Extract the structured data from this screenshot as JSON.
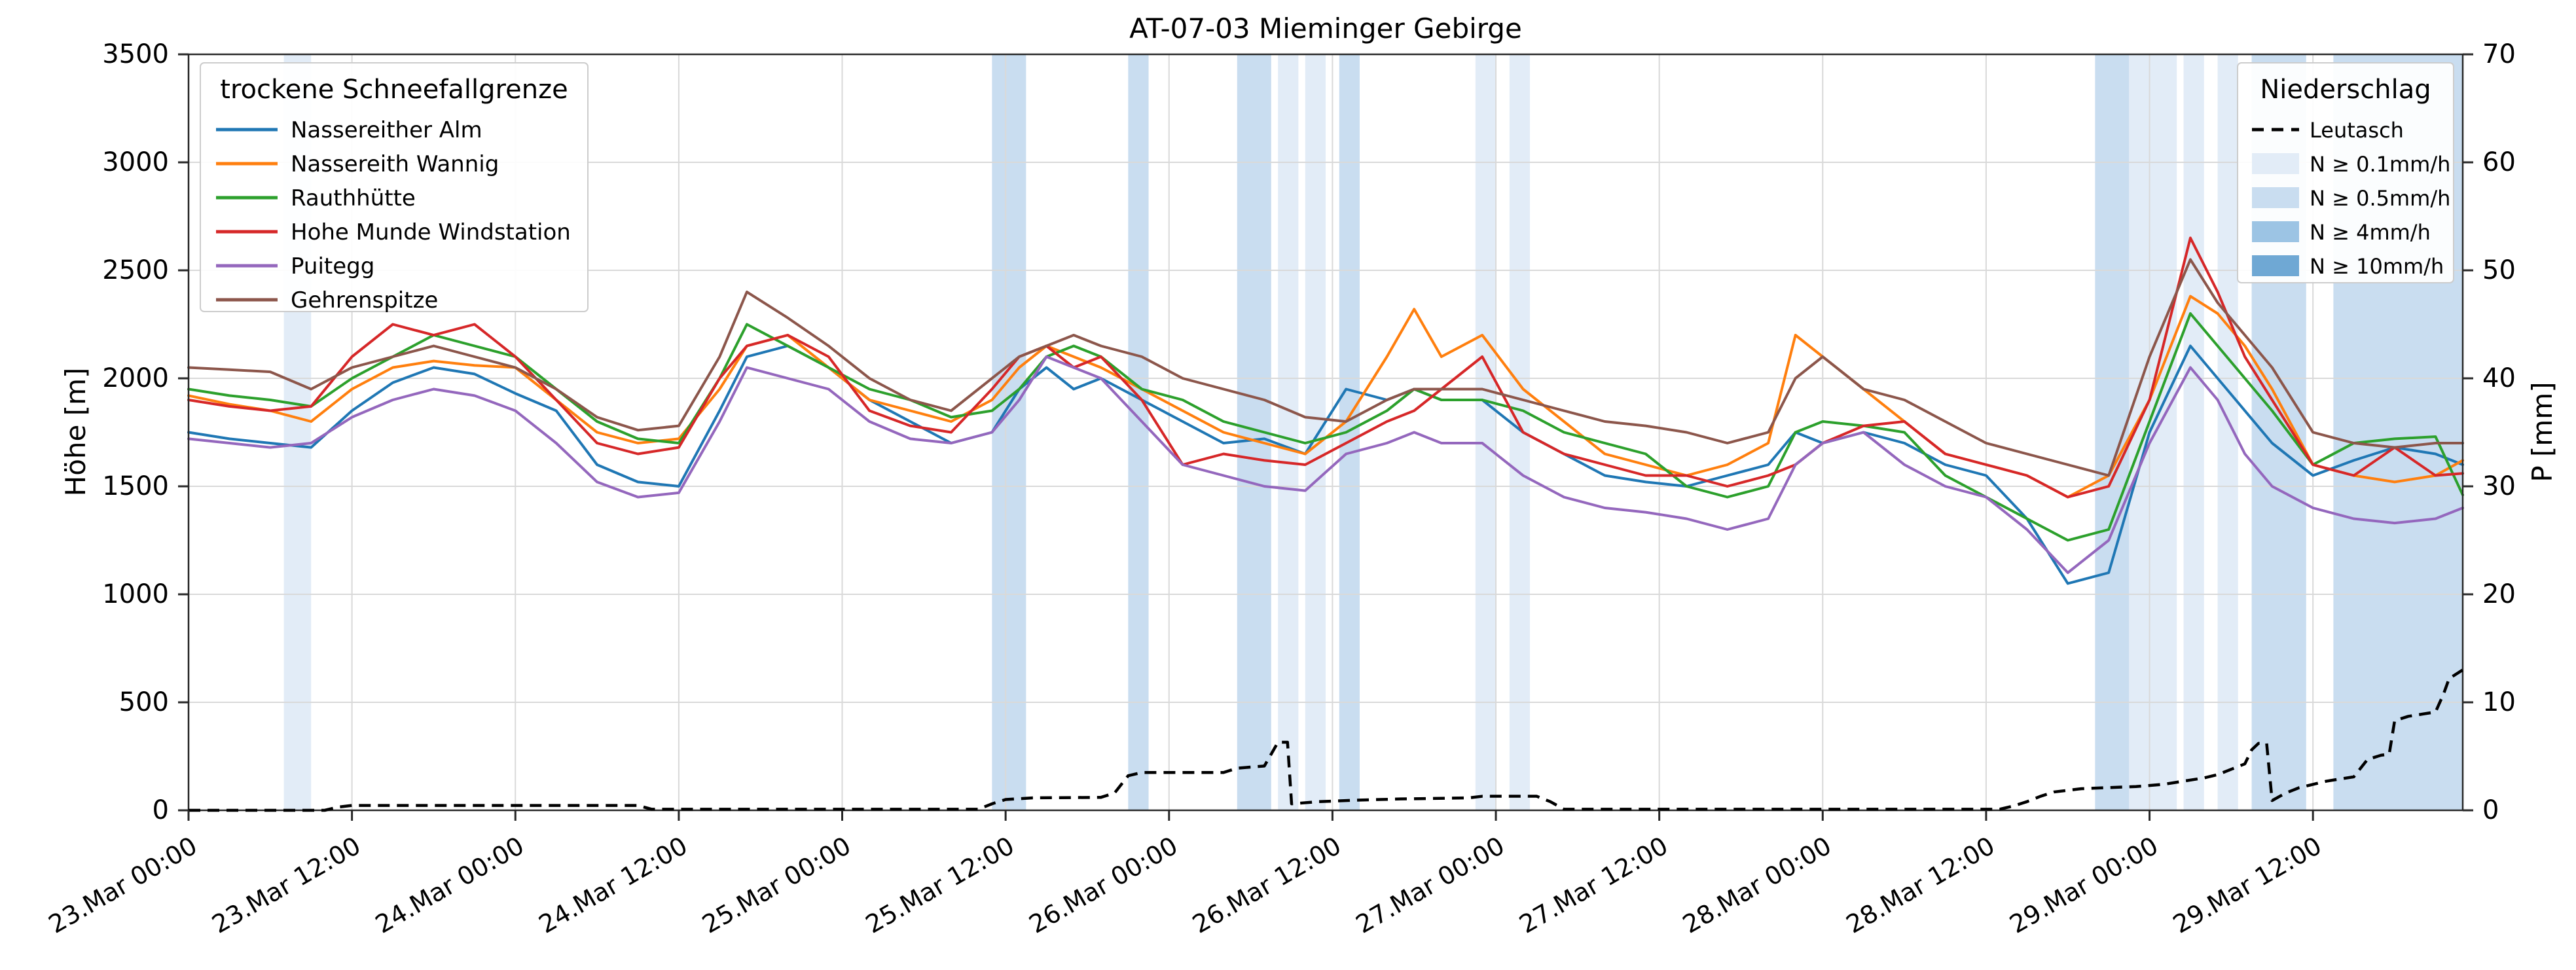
{
  "chart_data": {
    "type": "line",
    "title": "AT-07-03 Mieminger Gebirge",
    "ylabel_left": "Höhe [m]",
    "ylabel_right": "P [mm]",
    "ylim_left": [
      0,
      3500
    ],
    "ylim_right": [
      0,
      70
    ],
    "x_range_hours": [
      0,
      167
    ],
    "grid_color": "#d9d9d9",
    "y_ticks_left": [
      0,
      500,
      1000,
      1500,
      2000,
      2500,
      3000,
      3500
    ],
    "y_ticks_right": [
      0,
      10,
      20,
      30,
      40,
      50,
      60,
      70
    ],
    "x_ticks": [
      {
        "t": 0,
        "label": "23.Mar 00:00"
      },
      {
        "t": 12,
        "label": "23.Mar 12:00"
      },
      {
        "t": 24,
        "label": "24.Mar 00:00"
      },
      {
        "t": 36,
        "label": "24.Mar 12:00"
      },
      {
        "t": 48,
        "label": "25.Mar 00:00"
      },
      {
        "t": 60,
        "label": "25.Mar 12:00"
      },
      {
        "t": 72,
        "label": "26.Mar 00:00"
      },
      {
        "t": 84,
        "label": "26.Mar 12:00"
      },
      {
        "t": 96,
        "label": "27.Mar 00:00"
      },
      {
        "t": 108,
        "label": "27.Mar 12:00"
      },
      {
        "t": 120,
        "label": "28.Mar 00:00"
      },
      {
        "t": 132,
        "label": "28.Mar 12:00"
      },
      {
        "t": 144,
        "label": "29.Mar 00:00"
      },
      {
        "t": 156,
        "label": "29.Mar 12:00"
      }
    ],
    "legend_sfg_title": "trockene Schneefallgrenze",
    "series_t": [
      0,
      3,
      6,
      9,
      12,
      15,
      18,
      21,
      24,
      27,
      30,
      33,
      36,
      39,
      41,
      44,
      47,
      50,
      53,
      56,
      59,
      61,
      63,
      65,
      67,
      70,
      73,
      76,
      79,
      82,
      85,
      88,
      90,
      92,
      95,
      98,
      101,
      104,
      107,
      110,
      113,
      116,
      118,
      120,
      123,
      126,
      129,
      132,
      135,
      138,
      141,
      144,
      147,
      149,
      151,
      153,
      156,
      159,
      162,
      165,
      167
    ],
    "series": [
      {
        "name": "Nassereither Alm",
        "color": "#1f77b4",
        "values": [
          1750,
          1720,
          1700,
          1680,
          1850,
          1980,
          2050,
          2020,
          1930,
          1850,
          1600,
          1520,
          1500,
          1850,
          2100,
          2150,
          2050,
          1900,
          1800,
          1700,
          1750,
          1950,
          2050,
          1950,
          2000,
          1900,
          1800,
          1700,
          1720,
          1650,
          1950,
          1900,
          1950,
          1900,
          1900,
          1750,
          1650,
          1550,
          1520,
          1500,
          1550,
          1600,
          1750,
          1700,
          1750,
          1700,
          1600,
          1550,
          1350,
          1050,
          1100,
          1750,
          2150,
          2000,
          1850,
          1700,
          1550,
          1620,
          1680,
          1650,
          1600
        ]
      },
      {
        "name": "Nassereith Wannig",
        "color": "#ff7f0e",
        "values": [
          1920,
          1880,
          1850,
          1800,
          1950,
          2050,
          2080,
          2060,
          2050,
          1900,
          1750,
          1700,
          1720,
          1950,
          2150,
          2200,
          2050,
          1900,
          1850,
          1800,
          1900,
          2050,
          2150,
          2100,
          2050,
          1950,
          1850,
          1750,
          1700,
          1650,
          1800,
          2100,
          2320,
          2100,
          2200,
          1950,
          1800,
          1650,
          1600,
          1550,
          1600,
          1700,
          2200,
          2100,
          1950,
          1800,
          1650,
          1600,
          1550,
          1450,
          1550,
          1900,
          2380,
          2300,
          2150,
          1950,
          1600,
          1550,
          1520,
          1550,
          1620
        ]
      },
      {
        "name": "Rauthhütte",
        "color": "#2ca02c",
        "values": [
          1950,
          1920,
          1900,
          1870,
          2000,
          2100,
          2200,
          2150,
          2100,
          1950,
          1800,
          1720,
          1700,
          2000,
          2250,
          2150,
          2050,
          1950,
          1900,
          1820,
          1850,
          1950,
          2100,
          2150,
          2100,
          1950,
          1900,
          1800,
          1750,
          1700,
          1750,
          1850,
          1950,
          1900,
          1900,
          1850,
          1750,
          1700,
          1650,
          1500,
          1450,
          1500,
          1750,
          1800,
          1780,
          1750,
          1550,
          1450,
          1350,
          1250,
          1300,
          1800,
          2300,
          2150,
          2000,
          1850,
          1600,
          1700,
          1720,
          1730,
          1460
        ]
      },
      {
        "name": "Hohe Munde Windstation",
        "color": "#d62728",
        "values": [
          1900,
          1870,
          1850,
          1870,
          2100,
          2250,
          2200,
          2250,
          2100,
          1900,
          1700,
          1650,
          1680,
          2000,
          2150,
          2200,
          2100,
          1850,
          1780,
          1750,
          1950,
          2100,
          2150,
          2050,
          2100,
          1900,
          1600,
          1650,
          1620,
          1600,
          1700,
          1800,
          1850,
          1950,
          2100,
          1750,
          1650,
          1600,
          1550,
          1550,
          1500,
          1550,
          1600,
          1700,
          1780,
          1800,
          1650,
          1600,
          1550,
          1450,
          1500,
          1900,
          2650,
          2400,
          2100,
          1900,
          1600,
          1550,
          1680,
          1550,
          1560
        ]
      },
      {
        "name": "Puitegg",
        "color": "#9467bd",
        "values": [
          1720,
          1700,
          1680,
          1700,
          1820,
          1900,
          1950,
          1920,
          1850,
          1700,
          1520,
          1450,
          1470,
          1800,
          2050,
          2000,
          1950,
          1800,
          1720,
          1700,
          1750,
          1900,
          2100,
          2050,
          2000,
          1800,
          1600,
          1550,
          1500,
          1480,
          1650,
          1700,
          1750,
          1700,
          1700,
          1550,
          1450,
          1400,
          1380,
          1350,
          1300,
          1350,
          1600,
          1700,
          1750,
          1600,
          1500,
          1450,
          1300,
          1100,
          1250,
          1700,
          2050,
          1900,
          1650,
          1500,
          1400,
          1350,
          1330,
          1350,
          1400
        ]
      },
      {
        "name": "Gehrenspitze",
        "color": "#8c564b",
        "values": [
          2050,
          2040,
          2030,
          1950,
          2050,
          2100,
          2150,
          2100,
          2050,
          1950,
          1820,
          1760,
          1780,
          2100,
          2400,
          2280,
          2150,
          2000,
          1900,
          1850,
          2000,
          2100,
          2150,
          2200,
          2150,
          2100,
          2000,
          1950,
          1900,
          1820,
          1800,
          1900,
          1950,
          1950,
          1950,
          1900,
          1850,
          1800,
          1780,
          1750,
          1700,
          1750,
          2000,
          2100,
          1950,
          1900,
          1800,
          1700,
          1650,
          1600,
          1550,
          2100,
          2550,
          2350,
          2200,
          2050,
          1750,
          1700,
          1680,
          1700,
          1700
        ]
      }
    ],
    "legend_precip": {
      "title": "Niederschlag",
      "leutasch_label": "Leutasch",
      "levels": [
        {
          "key": "0.1",
          "label": "N ≥ 0.1mm/h",
          "color": "#e2ecf7"
        },
        {
          "key": "0.5",
          "label": "N ≥ 0.5mm/h",
          "color": "#c9ddf0"
        },
        {
          "key": "4",
          "label": "N ≥ 4mm/h",
          "color": "#9cc4e4"
        },
        {
          "key": "10",
          "label": "N ≥ 10mm/h",
          "color": "#6fa8d4"
        }
      ]
    },
    "precip_bands": [
      {
        "start": 7,
        "end": 9,
        "level": "0.1"
      },
      {
        "start": 59,
        "end": 61.5,
        "level": "0.5"
      },
      {
        "start": 69,
        "end": 70.5,
        "level": "0.5"
      },
      {
        "start": 77,
        "end": 79.5,
        "level": "0.5"
      },
      {
        "start": 80,
        "end": 81.5,
        "level": "0.1"
      },
      {
        "start": 82,
        "end": 83.5,
        "level": "0.1"
      },
      {
        "start": 84.5,
        "end": 86,
        "level": "0.5"
      },
      {
        "start": 94.5,
        "end": 96,
        "level": "0.1"
      },
      {
        "start": 97,
        "end": 98.5,
        "level": "0.1"
      },
      {
        "start": 140,
        "end": 142.5,
        "level": "0.5"
      },
      {
        "start": 142.5,
        "end": 146,
        "level": "0.1"
      },
      {
        "start": 146.5,
        "end": 148,
        "level": "0.1"
      },
      {
        "start": 149,
        "end": 150.5,
        "level": "0.1"
      },
      {
        "start": 151.5,
        "end": 155.5,
        "level": "0.5"
      },
      {
        "start": 157.5,
        "end": 167,
        "level": "0.5"
      }
    ],
    "leutasch_points": [
      [
        0,
        0
      ],
      [
        10,
        0
      ],
      [
        11,
        0.3
      ],
      [
        12,
        0.45
      ],
      [
        33,
        0.45
      ],
      [
        34,
        0.1
      ],
      [
        58,
        0.1
      ],
      [
        59,
        0.6
      ],
      [
        60,
        1.0
      ],
      [
        62,
        1.15
      ],
      [
        67,
        1.2
      ],
      [
        68,
        1.6
      ],
      [
        69,
        3.2
      ],
      [
        70,
        3.5
      ],
      [
        76,
        3.5
      ],
      [
        77,
        3.9
      ],
      [
        79,
        4.1
      ],
      [
        79.5,
        5.2
      ],
      [
        80,
        6.3
      ],
      [
        80.7,
        6.3
      ],
      [
        81,
        0.6
      ],
      [
        83,
        0.8
      ],
      [
        86,
        0.95
      ],
      [
        89,
        1.05
      ],
      [
        94,
        1.15
      ],
      [
        95,
        1.3
      ],
      [
        99,
        1.3
      ],
      [
        100,
        0.8
      ],
      [
        101,
        0.1
      ],
      [
        133,
        0.1
      ],
      [
        134,
        0.4
      ],
      [
        135,
        0.8
      ],
      [
        136,
        1.3
      ],
      [
        137,
        1.7
      ],
      [
        139,
        2.0
      ],
      [
        143,
        2.2
      ],
      [
        145,
        2.4
      ],
      [
        146,
        2.6
      ],
      [
        147,
        2.8
      ],
      [
        148,
        3.0
      ],
      [
        149,
        3.3
      ],
      [
        150,
        3.8
      ],
      [
        151,
        4.3
      ],
      [
        151.5,
        5.6
      ],
      [
        152,
        6.2
      ],
      [
        152.6,
        6.2
      ],
      [
        153,
        0.9
      ],
      [
        154,
        1.6
      ],
      [
        155,
        2.1
      ],
      [
        156,
        2.4
      ],
      [
        157,
        2.7
      ],
      [
        158,
        2.9
      ],
      [
        159,
        3.1
      ],
      [
        160,
        4.7
      ],
      [
        161,
        5.1
      ],
      [
        161.6,
        5.2
      ],
      [
        162,
        8.3
      ],
      [
        163,
        8.7
      ],
      [
        164,
        8.9
      ],
      [
        165,
        9.1
      ],
      [
        165.6,
        10.8
      ],
      [
        166,
        12.2
      ],
      [
        167,
        13.0
      ]
    ]
  }
}
